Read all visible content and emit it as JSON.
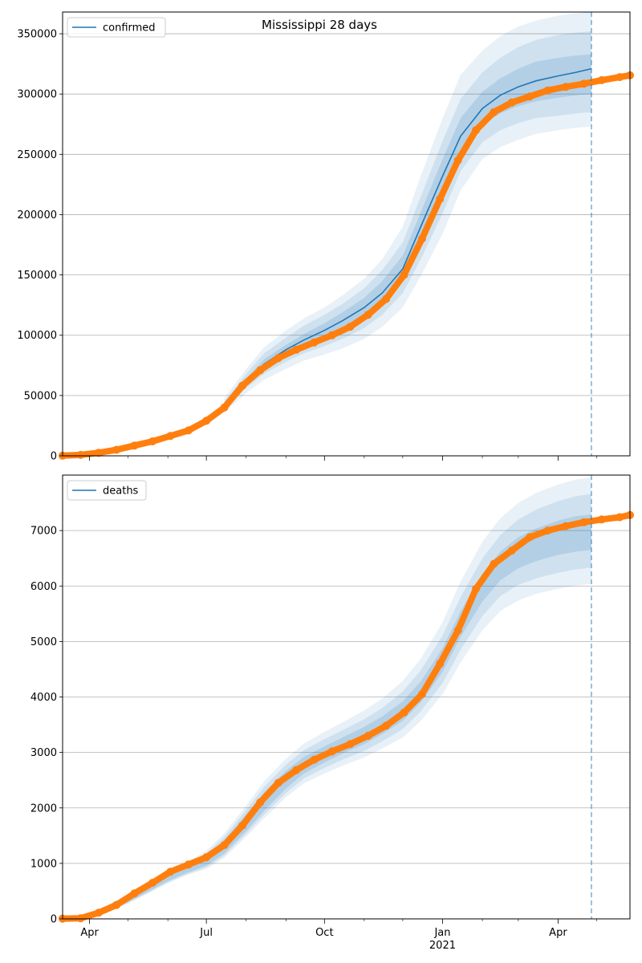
{
  "figure": {
    "title": "Mississippi 28 days"
  },
  "colors": {
    "forecast": "#1f77b4",
    "observed": "#ff7f0e",
    "grid": "#b0b0b0",
    "axis": "#000000"
  },
  "x_axis": {
    "start": "2020-03-11",
    "end": "2021-05-27",
    "major_ticks": [
      {
        "date": "2020-04-01",
        "label": "Apr",
        "sublabel": ""
      },
      {
        "date": "2020-07-01",
        "label": "Jul",
        "sublabel": ""
      },
      {
        "date": "2020-10-01",
        "label": "Oct",
        "sublabel": ""
      },
      {
        "date": "2021-01-01",
        "label": "Jan",
        "sublabel": "2021"
      },
      {
        "date": "2021-04-01",
        "label": "Apr",
        "sublabel": ""
      }
    ],
    "minor_ticks": [
      "2020-05-01",
      "2020-06-01",
      "2020-08-01",
      "2020-09-01",
      "2020-11-01",
      "2020-12-01",
      "2021-02-01",
      "2021-03-01",
      "2021-05-01"
    ]
  },
  "chart_data": [
    {
      "type": "line",
      "legend": "confirmed",
      "legend_position": "upper-left",
      "grid": "y",
      "ylim": [
        0,
        368000
      ],
      "yticks": [
        0,
        50000,
        100000,
        150000,
        200000,
        250000,
        300000,
        350000
      ],
      "forecast_start": "2021-04-27",
      "observed": {
        "x": [
          "2020-03-11",
          "2020-03-25",
          "2020-04-08",
          "2020-04-22",
          "2020-05-06",
          "2020-05-20",
          "2020-06-03",
          "2020-06-17",
          "2020-07-01",
          "2020-07-15",
          "2020-07-29",
          "2020-08-12",
          "2020-08-26",
          "2020-09-09",
          "2020-09-23",
          "2020-10-07",
          "2020-10-21",
          "2020-11-04",
          "2020-11-18",
          "2020-12-02",
          "2020-12-16",
          "2020-12-30",
          "2021-01-13",
          "2021-01-27",
          "2021-02-10",
          "2021-02-24",
          "2021-03-10",
          "2021-03-24",
          "2021-04-07",
          "2021-04-21",
          "2021-05-05",
          "2021-05-19",
          "2021-05-27"
        ],
        "y": [
          100,
          700,
          2500,
          5000,
          8500,
          12000,
          16500,
          21000,
          29000,
          40000,
          58000,
          71000,
          81000,
          88000,
          94000,
          100000,
          107000,
          117000,
          130000,
          150000,
          180000,
          213000,
          245000,
          270000,
          285000,
          293000,
          298000,
          303000,
          306000,
          308500,
          311500,
          314000,
          315500
        ]
      },
      "forecast": {
        "x": [
          "2020-07-15",
          "2020-08-01",
          "2020-08-15",
          "2020-09-01",
          "2020-09-15",
          "2020-10-01",
          "2020-10-15",
          "2020-11-01",
          "2020-11-15",
          "2020-12-01",
          "2020-12-15",
          "2021-01-01",
          "2021-01-15",
          "2021-02-01",
          "2021-02-15",
          "2021-03-01",
          "2021-03-15",
          "2021-04-01",
          "2021-04-15",
          "2021-04-27"
        ],
        "median": [
          41000,
          62000,
          76000,
          88000,
          96000,
          104000,
          112000,
          123000,
          135000,
          155000,
          190000,
          232000,
          265000,
          288000,
          299000,
          306000,
          311000,
          315000,
          318000,
          321000
        ],
        "band_inner": [
          [
            40000,
            42000
          ],
          [
            60000,
            64000
          ],
          [
            73000,
            80000
          ],
          [
            84000,
            92000
          ],
          [
            91000,
            101000
          ],
          [
            98000,
            110000
          ],
          [
            105000,
            119000
          ],
          [
            115000,
            131000
          ],
          [
            126000,
            145000
          ],
          [
            145000,
            166000
          ],
          [
            176000,
            202000
          ],
          [
            217000,
            246000
          ],
          [
            251000,
            280000
          ],
          [
            274000,
            302000
          ],
          [
            284000,
            313000
          ],
          [
            290000,
            321000
          ],
          [
            294000,
            327000
          ],
          [
            297000,
            330000
          ],
          [
            299000,
            332000
          ],
          [
            300000,
            333000
          ]
        ],
        "band_mid": [
          [
            38000,
            45000
          ],
          [
            56000,
            68000
          ],
          [
            68000,
            85000
          ],
          [
            78000,
            98000
          ],
          [
            85000,
            108000
          ],
          [
            91000,
            117000
          ],
          [
            97000,
            126000
          ],
          [
            106000,
            139000
          ],
          [
            117000,
            154000
          ],
          [
            135000,
            177000
          ],
          [
            163000,
            215000
          ],
          [
            201000,
            261000
          ],
          [
            236000,
            296000
          ],
          [
            260000,
            318000
          ],
          [
            270000,
            330000
          ],
          [
            276000,
            339000
          ],
          [
            280000,
            345000
          ],
          [
            282000,
            349000
          ],
          [
            284000,
            351000
          ],
          [
            285000,
            352000
          ]
        ],
        "band_outer": [
          [
            36000,
            48000
          ],
          [
            52000,
            72000
          ],
          [
            63000,
            90000
          ],
          [
            72000,
            104000
          ],
          [
            79000,
            114000
          ],
          [
            84000,
            123000
          ],
          [
            89000,
            133000
          ],
          [
            97000,
            147000
          ],
          [
            107000,
            163000
          ],
          [
            123000,
            190000
          ],
          [
            149000,
            232000
          ],
          [
            184000,
            280000
          ],
          [
            220000,
            316000
          ],
          [
            246000,
            336000
          ],
          [
            256000,
            348000
          ],
          [
            262000,
            356000
          ],
          [
            267000,
            361000
          ],
          [
            270000,
            365000
          ],
          [
            272000,
            367000
          ],
          [
            273000,
            368000
          ]
        ]
      }
    },
    {
      "type": "line",
      "legend": "deaths",
      "legend_position": "upper-left",
      "grid": "y",
      "ylim": [
        0,
        8000
      ],
      "yticks": [
        0,
        1000,
        2000,
        3000,
        4000,
        5000,
        6000,
        7000
      ],
      "forecast_start": "2021-04-27",
      "observed": {
        "x": [
          "2020-03-11",
          "2020-03-25",
          "2020-04-08",
          "2020-04-22",
          "2020-05-06",
          "2020-05-20",
          "2020-06-03",
          "2020-06-17",
          "2020-07-01",
          "2020-07-15",
          "2020-07-29",
          "2020-08-12",
          "2020-08-26",
          "2020-09-09",
          "2020-09-23",
          "2020-10-07",
          "2020-10-21",
          "2020-11-04",
          "2020-11-18",
          "2020-12-02",
          "2020-12-16",
          "2020-12-30",
          "2021-01-13",
          "2021-01-27",
          "2021-02-10",
          "2021-02-24",
          "2021-03-10",
          "2021-03-24",
          "2021-04-07",
          "2021-04-21",
          "2021-05-05",
          "2021-05-19",
          "2021-05-27"
        ],
        "y": [
          5,
          12,
          110,
          250,
          460,
          650,
          850,
          980,
          1110,
          1330,
          1680,
          2100,
          2450,
          2680,
          2870,
          3020,
          3150,
          3300,
          3480,
          3720,
          4050,
          4600,
          5200,
          5950,
          6400,
          6640,
          6880,
          7000,
          7080,
          7150,
          7200,
          7240,
          7280
        ]
      },
      "forecast": {
        "x": [
          "2020-03-11",
          "2020-04-01",
          "2020-04-15",
          "2020-05-01",
          "2020-05-15",
          "2020-06-01",
          "2020-06-15",
          "2020-07-01",
          "2020-07-15",
          "2020-08-01",
          "2020-08-15",
          "2020-09-01",
          "2020-09-15",
          "2020-10-01",
          "2020-10-15",
          "2020-11-01",
          "2020-11-15",
          "2020-12-01",
          "2020-12-15",
          "2021-01-01",
          "2021-01-15",
          "2021-02-01",
          "2021-02-15",
          "2021-03-01",
          "2021-03-15",
          "2021-04-01",
          "2021-04-15",
          "2021-04-27"
        ],
        "band_inner": [
          [
            0,
            20
          ],
          [
            25,
            70
          ],
          [
            130,
            230
          ],
          [
            300,
            420
          ],
          [
            470,
            600
          ],
          [
            680,
            810
          ],
          [
            820,
            950
          ],
          [
            960,
            1140
          ],
          [
            1180,
            1420
          ],
          [
            1580,
            1880
          ],
          [
            1950,
            2280
          ],
          [
            2350,
            2670
          ],
          [
            2620,
            2920
          ],
          [
            2820,
            3110
          ],
          [
            2980,
            3270
          ],
          [
            3150,
            3460
          ],
          [
            3330,
            3650
          ],
          [
            3570,
            3920
          ],
          [
            3900,
            4280
          ],
          [
            4450,
            4880
          ],
          [
            5080,
            5540
          ],
          [
            5720,
            6220
          ],
          [
            6100,
            6620
          ],
          [
            6320,
            6880
          ],
          [
            6450,
            7040
          ],
          [
            6560,
            7180
          ],
          [
            6620,
            7260
          ],
          [
            6650,
            7290
          ]
        ],
        "band_mid": [
          [
            0,
            20
          ],
          [
            20,
            80
          ],
          [
            120,
            240
          ],
          [
            290,
            430
          ],
          [
            455,
            620
          ],
          [
            660,
            830
          ],
          [
            800,
            975
          ],
          [
            930,
            1180
          ],
          [
            1140,
            1480
          ],
          [
            1530,
            1960
          ],
          [
            1880,
            2380
          ],
          [
            2270,
            2780
          ],
          [
            2530,
            3040
          ],
          [
            2720,
            3240
          ],
          [
            2870,
            3400
          ],
          [
            3030,
            3600
          ],
          [
            3200,
            3800
          ],
          [
            3420,
            4100
          ],
          [
            3740,
            4480
          ],
          [
            4250,
            5110
          ],
          [
            4850,
            5800
          ],
          [
            5460,
            6500
          ],
          [
            5820,
            6920
          ],
          [
            6020,
            7200
          ],
          [
            6140,
            7380
          ],
          [
            6240,
            7530
          ],
          [
            6300,
            7620
          ],
          [
            6330,
            7660
          ]
        ],
        "band_outer": [
          [
            0,
            20
          ],
          [
            15,
            90
          ],
          [
            110,
            255
          ],
          [
            275,
            445
          ],
          [
            440,
            640
          ],
          [
            640,
            860
          ],
          [
            780,
            1005
          ],
          [
            900,
            1230
          ],
          [
            1100,
            1540
          ],
          [
            1480,
            2040
          ],
          [
            1810,
            2480
          ],
          [
            2190,
            2890
          ],
          [
            2440,
            3160
          ],
          [
            2620,
            3370
          ],
          [
            2760,
            3540
          ],
          [
            2910,
            3760
          ],
          [
            3070,
            3970
          ],
          [
            3270,
            4290
          ],
          [
            3570,
            4690
          ],
          [
            4050,
            5350
          ],
          [
            4620,
            6080
          ],
          [
            5200,
            6800
          ],
          [
            5550,
            7220
          ],
          [
            5740,
            7500
          ],
          [
            5860,
            7680
          ],
          [
            5950,
            7830
          ],
          [
            6010,
            7920
          ],
          [
            6040,
            7960
          ]
        ]
      }
    }
  ]
}
